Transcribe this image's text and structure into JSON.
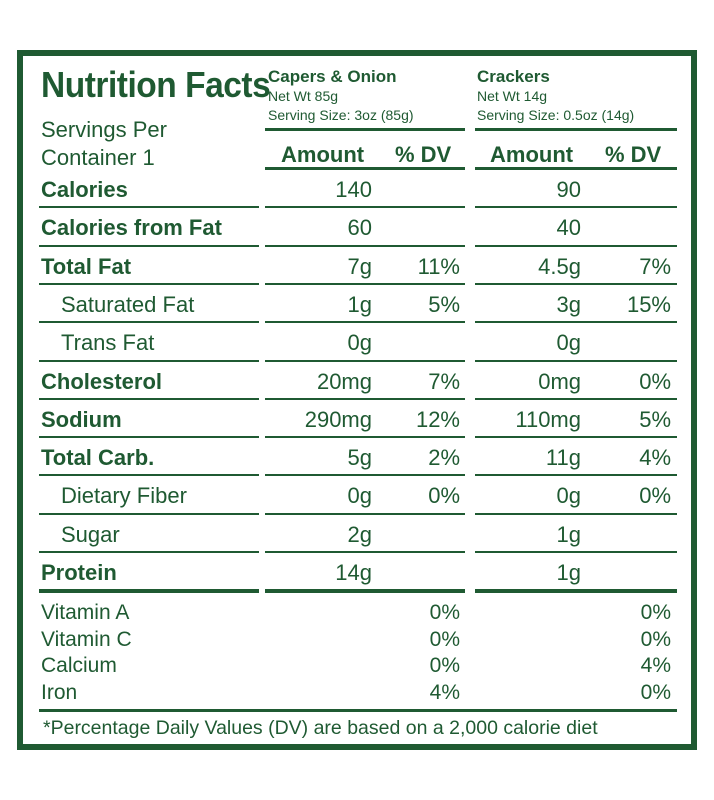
{
  "title": "Nutrition Facts",
  "servings_label": "Servings Per Container 1",
  "products": [
    {
      "name": "Capers & Onion",
      "net_wt": "Net Wt 85g",
      "serving_size": "Serving Size: 3oz (85g)"
    },
    {
      "name": "Crackers",
      "net_wt": "Net Wt 14g",
      "serving_size": "Serving Size: 0.5oz (14g)"
    }
  ],
  "column_headers": {
    "amount": "Amount",
    "dv": "% DV"
  },
  "rows": [
    {
      "label": "Calories",
      "bold": true,
      "indent": false,
      "p1_amount": "140",
      "p1_dv": "",
      "p2_amount": "90",
      "p2_dv": ""
    },
    {
      "label": "Calories from Fat",
      "bold": true,
      "indent": false,
      "p1_amount": "60",
      "p1_dv": "",
      "p2_amount": "40",
      "p2_dv": ""
    },
    {
      "label": "Total Fat",
      "bold": true,
      "indent": false,
      "p1_amount": "7g",
      "p1_dv": "11%",
      "p2_amount": "4.5g",
      "p2_dv": "7%"
    },
    {
      "label": "Saturated Fat",
      "bold": false,
      "indent": true,
      "p1_amount": "1g",
      "p1_dv": "5%",
      "p2_amount": "3g",
      "p2_dv": "15%"
    },
    {
      "label": "Trans Fat",
      "bold": false,
      "indent": true,
      "p1_amount": "0g",
      "p1_dv": "",
      "p2_amount": "0g",
      "p2_dv": ""
    },
    {
      "label": "Cholesterol",
      "bold": true,
      "indent": false,
      "p1_amount": "20mg",
      "p1_dv": "7%",
      "p2_amount": "0mg",
      "p2_dv": "0%"
    },
    {
      "label": "Sodium",
      "bold": true,
      "indent": false,
      "p1_amount": "290mg",
      "p1_dv": "12%",
      "p2_amount": "110mg",
      "p2_dv": "5%"
    },
    {
      "label": "Total Carb.",
      "bold": true,
      "indent": false,
      "p1_amount": "5g",
      "p1_dv": "2%",
      "p2_amount": "11g",
      "p2_dv": "4%"
    },
    {
      "label": "Dietary Fiber",
      "bold": false,
      "indent": true,
      "p1_amount": "0g",
      "p1_dv": "0%",
      "p2_amount": "0g",
      "p2_dv": "0%"
    },
    {
      "label": "Sugar",
      "bold": false,
      "indent": true,
      "p1_amount": "2g",
      "p1_dv": "",
      "p2_amount": "1g",
      "p2_dv": ""
    },
    {
      "label": "Protein",
      "bold": true,
      "indent": false,
      "p1_amount": "14g",
      "p1_dv": "",
      "p2_amount": "1g",
      "p2_dv": ""
    }
  ],
  "vitamins": [
    {
      "label": "Vitamin A",
      "p1_dv": "0%",
      "p2_dv": "0%"
    },
    {
      "label": "Vitamin C",
      "p1_dv": "0%",
      "p2_dv": "0%"
    },
    {
      "label": "Calcium",
      "p1_dv": "0%",
      "p2_dv": "4%"
    },
    {
      "label": "Iron",
      "p1_dv": "4%",
      "p2_dv": "0%"
    }
  ],
  "footnote": "*Percentage Daily Values (DV) are based on a 2,000 calorie diet",
  "colors": {
    "ink": "#1f5a32",
    "background": "#ffffff"
  }
}
